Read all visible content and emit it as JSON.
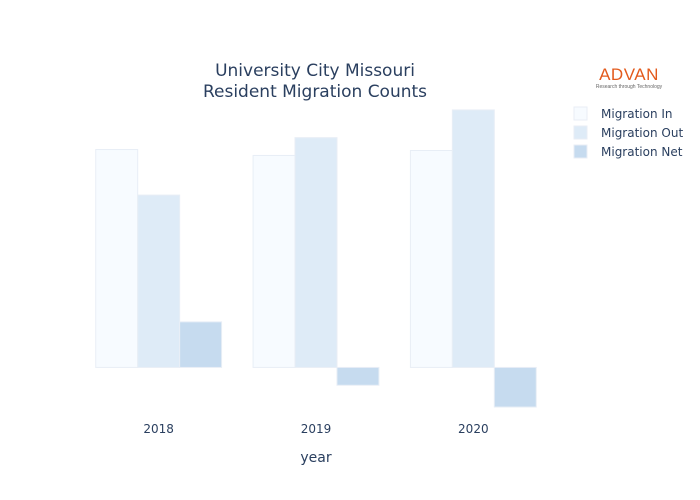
{
  "chart_data": {
    "type": "bar",
    "title": [
      "University City Missouri",
      "Resident Migration Counts"
    ],
    "xlabel": "year",
    "ylabel": "",
    "categories": [
      "2018",
      "2019",
      "2020"
    ],
    "ylim": [
      -450,
      2700
    ],
    "series": [
      {
        "name": "Migration In",
        "color": "#f7fbff",
        "values": [
          2200,
          2140,
          2190
        ]
      },
      {
        "name": "Migration Out",
        "color": "#deebf7",
        "values": [
          1740,
          2320,
          2600
        ]
      },
      {
        "name": "Migration Net",
        "color": "#c6dbef",
        "values": [
          460,
          -180,
          -400
        ]
      }
    ],
    "legend_position": "top-right",
    "grid": false
  },
  "logo": {
    "name": "ADVAN",
    "tagline": "Research through Technology"
  }
}
